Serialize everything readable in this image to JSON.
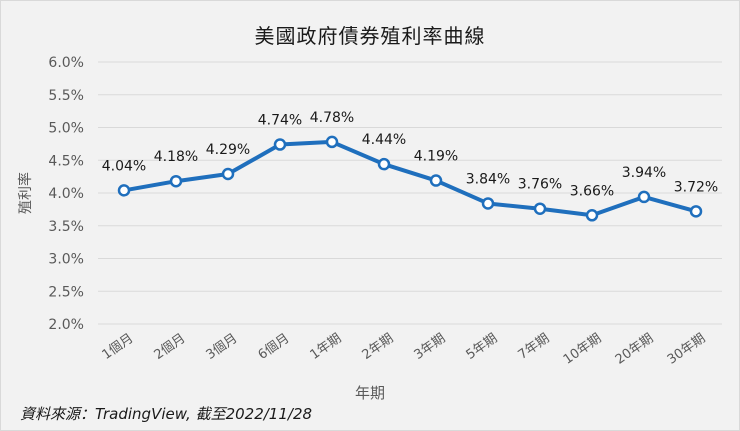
{
  "chart_data": {
    "type": "line",
    "title": "美國政府債券殖利率曲線",
    "xlabel": "年期",
    "ylabel": "殖利率",
    "categories": [
      "1個月",
      "2個月",
      "3個月",
      "6個月",
      "1年期",
      "2年期",
      "3年期",
      "5年期",
      "7年期",
      "10年期",
      "20年期",
      "30年期"
    ],
    "series": [
      {
        "name": "殖利率",
        "values": [
          4.04,
          4.18,
          4.29,
          4.74,
          4.78,
          4.44,
          4.19,
          3.84,
          3.76,
          3.66,
          3.94,
          3.72
        ],
        "labels": [
          "4.04%",
          "4.18%",
          "4.29%",
          "4.74%",
          "4.78%",
          "4.44%",
          "4.19%",
          "3.84%",
          "3.76%",
          "3.66%",
          "3.94%",
          "3.72%"
        ],
        "color": "#1f6fbd"
      }
    ],
    "ylim": [
      2.0,
      6.0
    ],
    "yticks": [
      "6.0%",
      "5.5%",
      "5.0%",
      "4.5%",
      "4.0%",
      "3.5%",
      "3.0%",
      "2.5%",
      "2.0%"
    ],
    "grid": true,
    "legend": "none"
  },
  "source_note": "資料來源：TradingView,  截至2022/11/28"
}
